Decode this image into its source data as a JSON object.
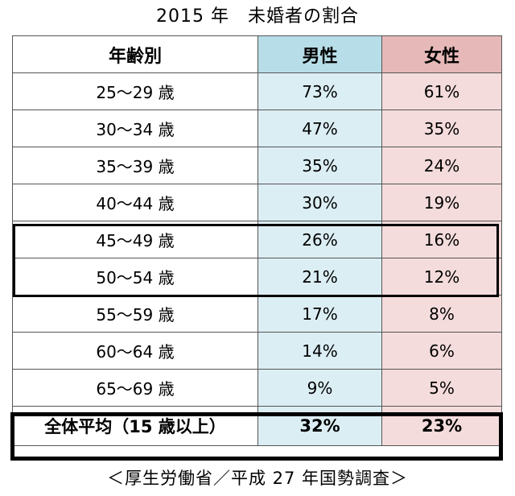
{
  "title": "2015 年　未婚者の割合",
  "source": "＜厚生労働省／平成 27 年国勢調査＞",
  "colors": {
    "male_header": "#b7dee8",
    "male_cell": "#dbeef4",
    "female_header": "#e6b9b8",
    "female_cell": "#f5dcdc",
    "highlight_border": "#000000"
  },
  "chart_data": {
    "type": "table",
    "title": "2015 年　未婚者の割合",
    "columns": [
      "年齢別",
      "男性",
      "女性"
    ],
    "rows": [
      {
        "age": "25～29 歳",
        "male": "73%",
        "female": "61%"
      },
      {
        "age": "30～34 歳",
        "male": "47%",
        "female": "35%"
      },
      {
        "age": "35～39 歳",
        "male": "35%",
        "female": "24%"
      },
      {
        "age": "40～44 歳",
        "male": "30%",
        "female": "19%"
      },
      {
        "age": "45～49 歳",
        "male": "26%",
        "female": "16%"
      },
      {
        "age": "50～54 歳",
        "male": "21%",
        "female": "12%"
      },
      {
        "age": "55～59 歳",
        "male": "17%",
        "female": "8%"
      },
      {
        "age": "60～64 歳",
        "male": "14%",
        "female": "6%"
      },
      {
        "age": "65～69 歳",
        "male": "9%",
        "female": "5%"
      }
    ],
    "total": {
      "age": "全体平均（15 歳以上）",
      "male": "32%",
      "female": "23%"
    },
    "highlighted_rows": [
      "45～49 歳",
      "50～54 歳"
    ],
    "source": "＜厚生労働省／平成 27 年国勢調査＞"
  }
}
